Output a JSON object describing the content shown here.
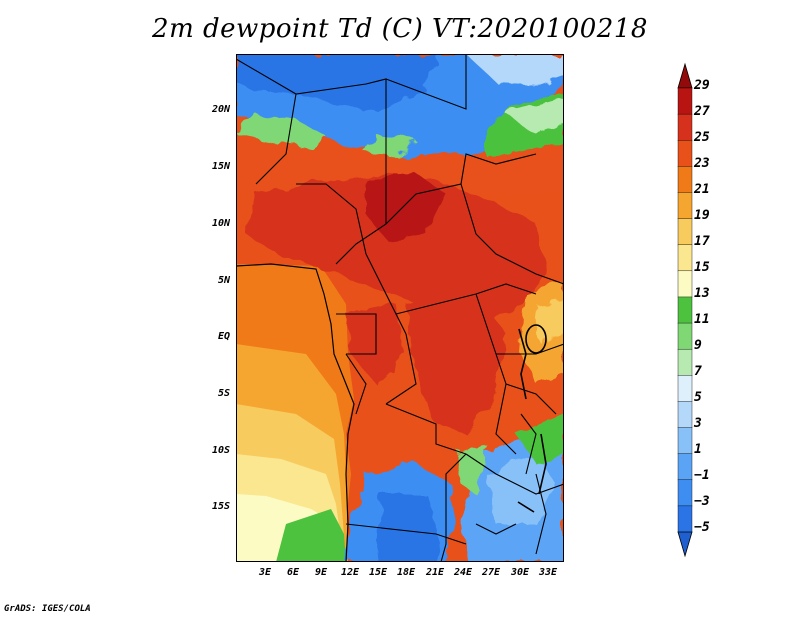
{
  "title": "2m dewpoint Td (C) VT:2020100218",
  "credit": "GrADS: IGES/COLA",
  "map": {
    "region": "Central Africa",
    "lon_range": [
      0,
      35
    ],
    "lat_range": [
      -20,
      25
    ],
    "x_tick_labels": [
      "3E",
      "6E",
      "9E",
      "12E",
      "15E",
      "18E",
      "21E",
      "24E",
      "27E",
      "30E",
      "33E"
    ],
    "y_tick_labels": [
      "20N",
      "15N",
      "10N",
      "5N",
      "EQ",
      "5S",
      "10S",
      "15S"
    ]
  },
  "colorbar": {
    "labels": [
      "29",
      "27",
      "25",
      "23",
      "21",
      "19",
      "17",
      "15",
      "13",
      "11",
      "9",
      "7",
      "5",
      "3",
      "1",
      "−1",
      "−3",
      "−5"
    ],
    "levels": [
      -5,
      -3,
      -1,
      1,
      3,
      5,
      7,
      9,
      11,
      13,
      15,
      17,
      19,
      21,
      23,
      25,
      27,
      29
    ],
    "colors": [
      "#1f5fd0",
      "#2a74e6",
      "#3e8ef2",
      "#5ba4f5",
      "#88c0f8",
      "#b4d8fa",
      "#dff0fd",
      "#b6eab0",
      "#7fd874",
      "#4cc23e",
      "#fdfbc4",
      "#fbe790",
      "#f8cb5f",
      "#f5a630",
      "#f07a18",
      "#e8511a",
      "#d6311c",
      "#b81512",
      "#930a0a"
    ]
  },
  "colors": {
    "ocean_atlantic": "#ed7a1a",
    "sahara": "#5ba4f5",
    "humid_core": "#d6311c",
    "border": "#000000"
  }
}
